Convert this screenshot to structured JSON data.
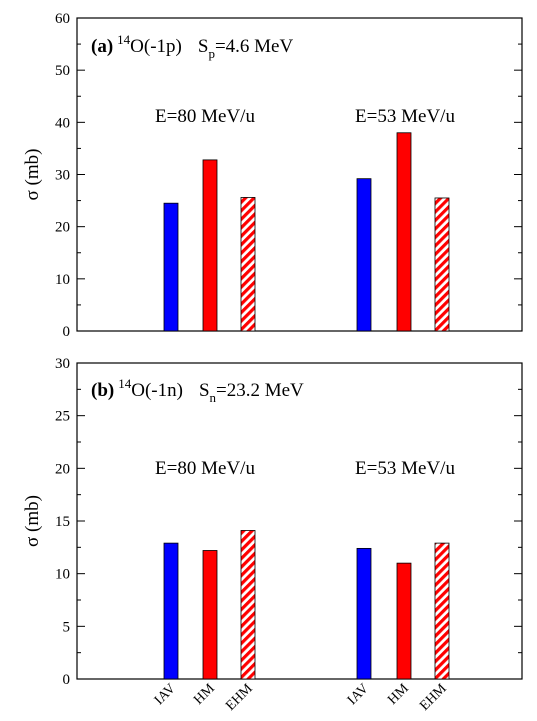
{
  "colors": {
    "iav": "#0000ff",
    "hm": "#ff0000",
    "ehm_stripe": "#ff0000",
    "ehm_background": "#ffffff",
    "axes": "#000000"
  },
  "chart_data": [
    {
      "type": "bar",
      "panel_label": "(a)",
      "reaction_mass": "14",
      "reaction": "O(-1p)",
      "separation_symbol": "S",
      "separation_subscript": "p",
      "separation_value": "=4.6 MeV",
      "ylabel": "σ (mb)",
      "ylim": [
        0,
        60
      ],
      "yticks": [
        0,
        10,
        20,
        30,
        40,
        50,
        60
      ],
      "groups": [
        {
          "label": "E=80 MeV/u",
          "categories": [
            "IAV",
            "HM",
            "EHM"
          ],
          "values": [
            24.5,
            32.8,
            25.6
          ]
        },
        {
          "label": "E=53 MeV/u",
          "categories": [
            "IAV",
            "HM",
            "EHM"
          ],
          "values": [
            29.2,
            38.0,
            25.5
          ]
        }
      ]
    },
    {
      "type": "bar",
      "panel_label": "(b)",
      "reaction_mass": "14",
      "reaction": "O(-1n)",
      "separation_symbol": "S",
      "separation_subscript": "n",
      "separation_value": "=23.2 MeV",
      "ylabel": "σ (mb)",
      "ylim": [
        0,
        30
      ],
      "yticks": [
        0,
        5,
        10,
        15,
        20,
        25,
        30
      ],
      "groups": [
        {
          "label": "E=80 MeV/u",
          "categories": [
            "IAV",
            "HM",
            "EHM"
          ],
          "values": [
            12.9,
            12.2,
            14.1
          ]
        },
        {
          "label": "E=53 MeV/u",
          "categories": [
            "IAV",
            "HM",
            "EHM"
          ],
          "values": [
            12.4,
            11.0,
            12.9
          ]
        }
      ]
    }
  ]
}
